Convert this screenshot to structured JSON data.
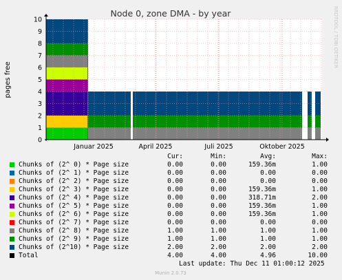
{
  "chart_data": {
    "type": "area",
    "title": "Node 0, zone DMA - by year",
    "ylabel": "pages free",
    "side_label": "RRDTOOL / TOBI OETIKER",
    "ylim": [
      0,
      10
    ],
    "yticks": [
      "0",
      "1",
      "2",
      "3",
      "4",
      "5",
      "6",
      "7",
      "8",
      "9",
      "10"
    ],
    "xticks": [
      "Januar 2025",
      "April 2025",
      "Juli 2025",
      "Oktober 2025"
    ],
    "series_stack": [
      {
        "name": "Chunks of (2^ 0) * Page size",
        "color": "#00CC00"
      },
      {
        "name": "Chunks of (2^ 1) * Page size",
        "color": "#0066B3"
      },
      {
        "name": "Chunks of (2^ 2) * Page size",
        "color": "#FF8000"
      },
      {
        "name": "Chunks of (2^ 3) * Page size",
        "color": "#FFCC00"
      },
      {
        "name": "Chunks of (2^ 4) * Page size",
        "color": "#330099"
      },
      {
        "name": "Chunks of (2^ 5) * Page size",
        "color": "#990099"
      },
      {
        "name": "Chunks of (2^ 6) * Page size",
        "color": "#CCFF00"
      },
      {
        "name": "Chunks of (2^ 7) * Page size",
        "color": "#FF0000"
      },
      {
        "name": "Chunks of (2^ 8) * Page size",
        "color": "#808080"
      },
      {
        "name": "Chunks of (2^ 9) * Page size",
        "color": "#008F00"
      },
      {
        "name": "Chunks of (2^10) * Page size",
        "color": "#00487D"
      }
    ],
    "segments": [
      {
        "period": "before Jan 2025",
        "values": [
          1,
          0,
          0,
          1,
          2,
          1,
          1,
          0,
          1,
          1,
          2
        ]
      },
      {
        "period": "Jan 2025 - Dec 2025",
        "values": [
          0,
          0,
          0,
          0,
          0,
          0,
          0,
          0,
          1,
          1,
          2
        ]
      }
    ],
    "legend_header": {
      "cur": "Cur:",
      "min": "Min:",
      "avg": "Avg:",
      "max": "Max:"
    },
    "legend_rows": [
      {
        "name": "Chunks of (2^ 0) * Page size",
        "color": "#00CC00",
        "cur": "0.00",
        "min": "0.00",
        "avg": "159.36m",
        "max": "1.00"
      },
      {
        "name": "Chunks of (2^ 1) * Page size",
        "color": "#0066B3",
        "cur": "0.00",
        "min": "0.00",
        "avg": "0.00",
        "max": "0.00"
      },
      {
        "name": "Chunks of (2^ 2) * Page size",
        "color": "#FF8000",
        "cur": "0.00",
        "min": "0.00",
        "avg": "0.00",
        "max": "0.00"
      },
      {
        "name": "Chunks of (2^ 3) * Page size",
        "color": "#FFCC00",
        "cur": "0.00",
        "min": "0.00",
        "avg": "159.36m",
        "max": "1.00"
      },
      {
        "name": "Chunks of (2^ 4) * Page size",
        "color": "#330099",
        "cur": "0.00",
        "min": "0.00",
        "avg": "318.71m",
        "max": "2.00"
      },
      {
        "name": "Chunks of (2^ 5) * Page size",
        "color": "#990099",
        "cur": "0.00",
        "min": "0.00",
        "avg": "159.36m",
        "max": "1.00"
      },
      {
        "name": "Chunks of (2^ 6) * Page size",
        "color": "#CCFF00",
        "cur": "0.00",
        "min": "0.00",
        "avg": "159.36m",
        "max": "1.00"
      },
      {
        "name": "Chunks of (2^ 7) * Page size",
        "color": "#FF0000",
        "cur": "0.00",
        "min": "0.00",
        "avg": "0.00",
        "max": "0.00"
      },
      {
        "name": "Chunks of (2^ 8) * Page size",
        "color": "#808080",
        "cur": "1.00",
        "min": "1.00",
        "avg": "1.00",
        "max": "1.00"
      },
      {
        "name": "Chunks of (2^ 9) * Page size",
        "color": "#008F00",
        "cur": "1.00",
        "min": "1.00",
        "avg": "1.00",
        "max": "1.00"
      },
      {
        "name": "Chunks of (2^10) * Page size",
        "color": "#00487D",
        "cur": "2.00",
        "min": "2.00",
        "avg": "2.00",
        "max": "2.00"
      },
      {
        "name": "Total",
        "color": "#000000",
        "cur": "4.00",
        "min": "4.00",
        "avg": "4.96",
        "max": "10.00"
      }
    ],
    "last_update": "Last update: Thu Dec 11 01:00:12 2025",
    "footer": "Munin 2.0.73"
  }
}
